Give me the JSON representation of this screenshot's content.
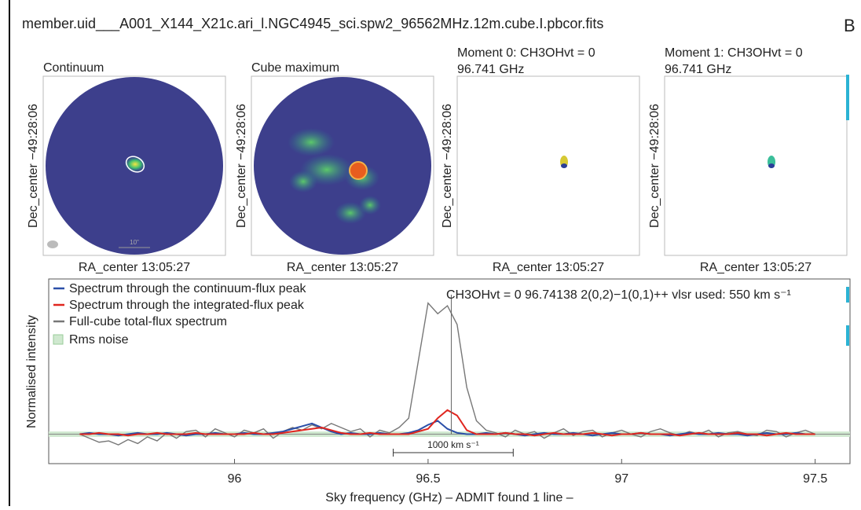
{
  "header": {
    "title": "member.uid___A001_X144_X21c.ari_l.NGC4945_sci.spw2_96562MHz.12m.cube.I.pbcor.fits",
    "corner": "B"
  },
  "panels": [
    {
      "title": "Continuum",
      "xlabel": "RA_center 13:05:27",
      "ylabel": "Dec_center −49:28:06",
      "scalebar": "10\""
    },
    {
      "title": "Cube maximum",
      "xlabel": "RA_center 13:05:27",
      "ylabel": "Dec_center −49:28:06"
    },
    {
      "title": "Moment 0: CH3OHvt = 0",
      "subtitle": "96.741 GHz",
      "xlabel": "RA_center 13:05:27",
      "ylabel": "Dec_center −49:28:06"
    },
    {
      "title": "Moment 1: CH3OHvt = 0",
      "subtitle": "96.741 GHz",
      "xlabel": "RA_center 13:05:27",
      "ylabel": "Dec_center −49:28:06"
    }
  ],
  "chart_data": {
    "type": "line",
    "annotation": "CH3OHvt = 0  96.74138 2(0,2)−1(0,1)++ vlsr used: 550 km s⁻¹",
    "x_label": "Sky frequency (GHz) – ADMIT found 1 line –",
    "y_label": "Normalised intensity",
    "xlim": [
      95.52,
      97.59
    ],
    "ylim": [
      -0.22,
      1.16
    ],
    "xticks": [
      96,
      96.5,
      97,
      97.5
    ],
    "line_marker": 96.56,
    "velocity_bar": {
      "label": "1000 km s⁻¹",
      "x": [
        96.41,
        96.72
      ]
    },
    "rms": {
      "name": "Rms noise",
      "value": 0.02,
      "color": "#cfe8cf"
    },
    "x": [
      95.6,
      95.625,
      95.65,
      95.675,
      95.7,
      95.725,
      95.75,
      95.775,
      95.8,
      95.825,
      95.85,
      95.875,
      95.9,
      95.925,
      95.95,
      95.975,
      96,
      96.025,
      96.05,
      96.075,
      96.1,
      96.125,
      96.15,
      96.175,
      96.2,
      96.225,
      96.25,
      96.275,
      96.3,
      96.325,
      96.35,
      96.375,
      96.4,
      96.425,
      96.45,
      96.475,
      96.5,
      96.525,
      96.55,
      96.575,
      96.6,
      96.625,
      96.65,
      96.675,
      96.7,
      96.725,
      96.75,
      96.775,
      96.8,
      96.825,
      96.85,
      96.875,
      96.9,
      96.925,
      96.95,
      96.975,
      97,
      97.025,
      97.05,
      97.075,
      97.1,
      97.125,
      97.15,
      97.175,
      97.2,
      97.225,
      97.25,
      97.275,
      97.3,
      97.325,
      97.35,
      97.375,
      97.4,
      97.425,
      97.45,
      97.475,
      97.5
    ],
    "series": [
      {
        "name": "Full-cube total-flux spectrum",
        "color": "#777777",
        "values": [
          0,
          -0.03,
          -0.06,
          -0.05,
          -0.08,
          -0.04,
          -0.07,
          -0.02,
          -0.05,
          0.01,
          -0.03,
          0.02,
          0.03,
          -0.02,
          0.04,
          0.01,
          -0.02,
          0.03,
          0.01,
          0.04,
          -0.03,
          0.02,
          0.05,
          0.03,
          0.07,
          0.04,
          0.08,
          0.05,
          0.02,
          0.04,
          -0.02,
          0.03,
          0.01,
          0.05,
          0.12,
          0.55,
          0.98,
          0.9,
          0.96,
          0.82,
          0.35,
          0.1,
          0.03,
          0.01,
          -0.02,
          0.03,
          0,
          0.02,
          -0.03,
          0.01,
          0.04,
          -0.01,
          0.02,
          0.03,
          -0.02,
          0.01,
          0.03,
          0,
          -0.02,
          0.02,
          0.04,
          0.01,
          -0.01,
          0.02,
          0,
          0.03,
          -0.02,
          0.01,
          0.02,
          0,
          -0.01,
          0.03,
          0.02,
          -0.02,
          0.01,
          0.03,
          0
        ]
      },
      {
        "name": "Spectrum through the continuum-flux peak",
        "color": "#2b4fa8",
        "values": [
          0,
          0.01,
          0,
          0,
          -0.01,
          0,
          0.01,
          0,
          0,
          0.01,
          0,
          -0.01,
          0,
          0,
          0.01,
          0,
          0,
          0.01,
          0,
          0,
          0.01,
          0.02,
          0.04,
          0.06,
          0.08,
          0.05,
          0.02,
          0,
          0.01,
          0,
          0,
          0.01,
          0,
          0,
          0.01,
          0.03,
          0.07,
          0.1,
          0.04,
          0.01,
          0,
          0,
          0.01,
          0,
          0.01,
          0,
          -0.01,
          0,
          0.01,
          0,
          0,
          0.01,
          0,
          -0.01,
          0,
          0.01,
          0,
          0,
          0.01,
          0,
          0,
          -0.01,
          0,
          0.01,
          0,
          0,
          0.01,
          0,
          0,
          -0.01,
          0,
          0.01,
          0,
          0,
          0.01,
          0,
          0
        ]
      },
      {
        "name": "Spectrum through the integrated-flux peak",
        "color": "#e0261f",
        "values": [
          0,
          0,
          0.01,
          0,
          0,
          -0.01,
          0,
          0,
          0.01,
          0,
          0,
          0,
          0.01,
          0,
          0,
          0,
          0,
          0,
          0.01,
          0,
          0,
          0.01,
          0.02,
          0.03,
          0.04,
          0.05,
          0.03,
          0.01,
          0,
          0,
          0.01,
          0,
          0,
          0,
          0,
          0.02,
          0.04,
          0.12,
          0.18,
          0.14,
          0.03,
          0,
          0,
          0,
          0.01,
          0,
          0,
          -0.01,
          0,
          0.01,
          0,
          0,
          0,
          0.01,
          0,
          -0.01,
          0,
          0,
          0.01,
          0,
          0,
          0,
          -0.01,
          0,
          0.01,
          0,
          0,
          0,
          0.01,
          0,
          0,
          -0.01,
          0,
          0.01,
          0,
          0,
          0
        ]
      }
    ]
  }
}
